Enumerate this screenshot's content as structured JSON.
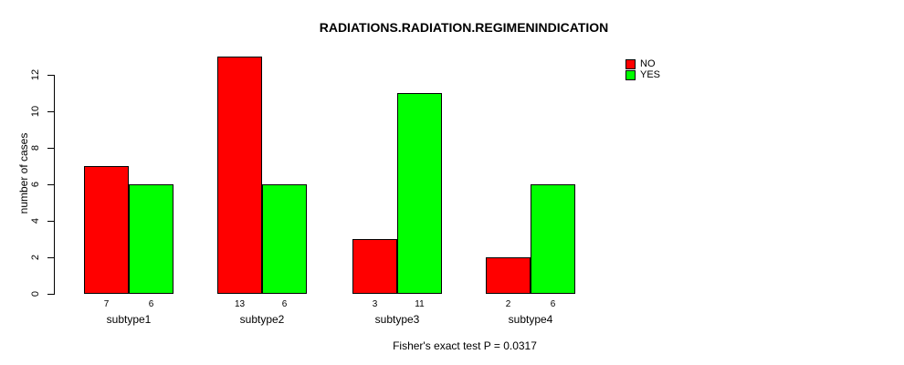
{
  "window": {
    "background_color": "#ffffff",
    "text_color": "#000000"
  },
  "chart_data": {
    "type": "bar",
    "title": "RADIATIONS.RADIATION.REGIMENINDICATION",
    "xlabel": "",
    "ylabel": "number of cases",
    "categories": [
      "subtype1",
      "subtype2",
      "subtype3",
      "subtype4"
    ],
    "series": [
      {
        "name": "NO",
        "color": "#ff0000",
        "values": [
          7,
          13,
          3,
          2
        ]
      },
      {
        "name": "YES",
        "color": "#00ff00",
        "values": [
          6,
          6,
          11,
          6
        ]
      }
    ],
    "bar_value_labels": [
      [
        "7",
        "6"
      ],
      [
        "13",
        "6"
      ],
      [
        "3",
        "11"
      ],
      [
        "2",
        "6"
      ]
    ],
    "y_ticks": [
      0,
      2,
      4,
      6,
      8,
      10,
      12
    ],
    "ylim": [
      0,
      13
    ],
    "grid": false,
    "legend_position": "top-right",
    "bar_border_color": "#000000",
    "note": "Fisher's exact test P = 0.0317"
  }
}
